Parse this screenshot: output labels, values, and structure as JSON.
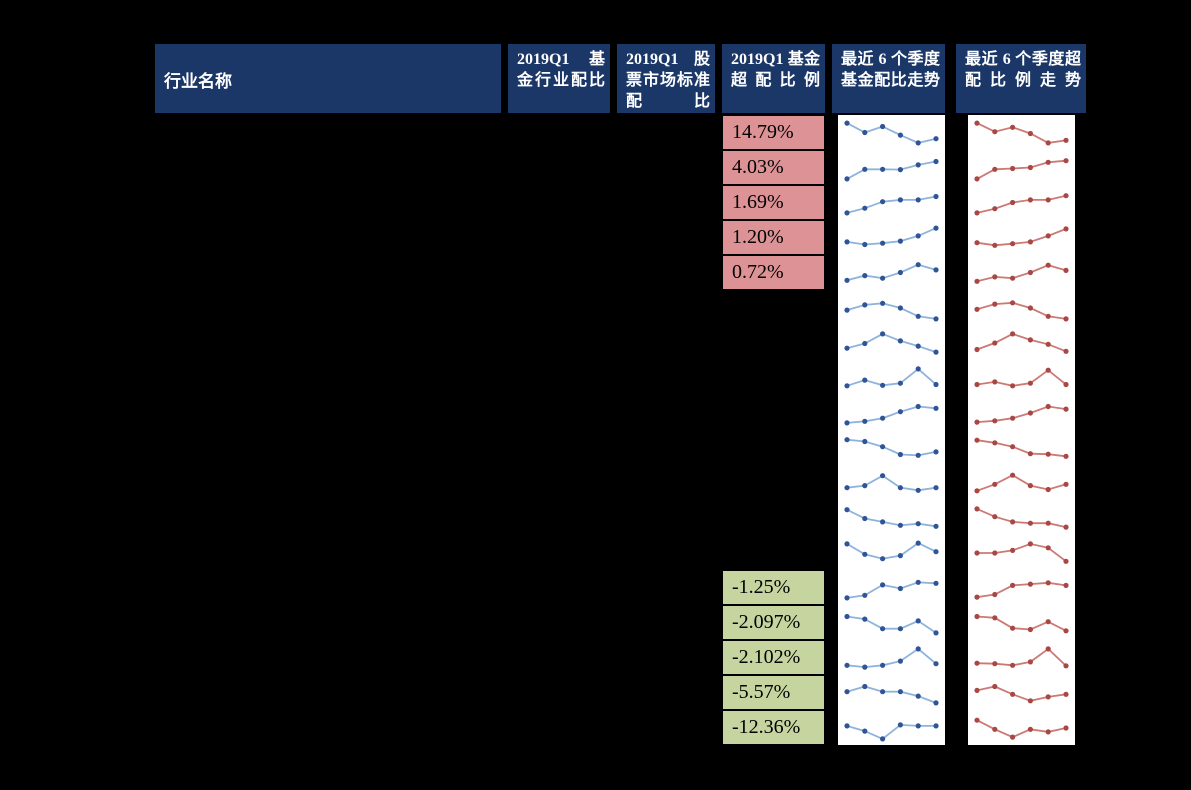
{
  "page": {
    "background": "#000000"
  },
  "palette": {
    "header_bg": "#1b3768",
    "header_text": "#ffffff",
    "positive_cell": "#dd9396",
    "negative_cell": "#c6d5a0",
    "cell_text": "#000000",
    "sparkline_bg": "#ffffff",
    "fund_line": "#8eb4dc",
    "fund_marker": "#2f5597",
    "over_line": "#cc7a76",
    "over_marker": "#a94744"
  },
  "chart_data": {
    "type": "table",
    "title": "",
    "columns": [
      "行业名称",
      "2019Q1 基金行业配比",
      "2019Q1 股票市场标准配比",
      "2019Q1 基金超配比例",
      "最近 6 个季度基金配比走势",
      "最近 6 个季度超配比例走势"
    ],
    "positive_over_ratios": [
      "14.79%",
      "4.03%",
      "1.69%",
      "1.20%",
      "0.72%"
    ],
    "negative_over_ratios": [
      "-1.25%",
      "-2.097%",
      "-2.102%",
      "-5.57%",
      "-12.36%"
    ],
    "rows": [
      {
        "over_ratio": "14.79%",
        "tone": "positive",
        "fund_trend": [
          0.88,
          0.52,
          0.75,
          0.42,
          0.12,
          0.28
        ],
        "over_trend": [
          0.88,
          0.55,
          0.72,
          0.48,
          0.12,
          0.22
        ]
      },
      {
        "over_ratio": "4.03%",
        "tone": "positive",
        "fund_trend": [
          0.08,
          0.45,
          0.45,
          0.44,
          0.62,
          0.75
        ],
        "over_trend": [
          0.08,
          0.45,
          0.48,
          0.52,
          0.72,
          0.78
        ]
      },
      {
        "over_ratio": "1.69%",
        "tone": "positive",
        "fund_trend": [
          0.12,
          0.3,
          0.55,
          0.62,
          0.62,
          0.75
        ],
        "over_trend": [
          0.12,
          0.28,
          0.52,
          0.62,
          0.62,
          0.78
        ]
      },
      {
        "over_ratio": "1.20%",
        "tone": "positive",
        "fund_trend": [
          0.35,
          0.25,
          0.3,
          0.38,
          0.58,
          0.88
        ],
        "over_trend": [
          0.32,
          0.22,
          0.28,
          0.35,
          0.58,
          0.85
        ]
      },
      {
        "over_ratio": "0.72%",
        "tone": "positive",
        "fund_trend": [
          0.22,
          0.4,
          0.3,
          0.52,
          0.82,
          0.62
        ],
        "over_trend": [
          0.18,
          0.35,
          0.3,
          0.52,
          0.8,
          0.6
        ]
      },
      {
        "over_ratio": "",
        "tone": "none",
        "fund_trend": [
          0.42,
          0.62,
          0.68,
          0.5,
          0.18,
          0.08
        ],
        "over_trend": [
          0.45,
          0.65,
          0.7,
          0.5,
          0.18,
          0.08
        ]
      },
      {
        "over_ratio": "",
        "tone": "none",
        "fund_trend": [
          0.3,
          0.48,
          0.85,
          0.58,
          0.38,
          0.15
        ],
        "over_trend": [
          0.25,
          0.5,
          0.85,
          0.62,
          0.45,
          0.18
        ]
      },
      {
        "over_ratio": "",
        "tone": "none",
        "fund_trend": [
          0.2,
          0.42,
          0.22,
          0.3,
          0.85,
          0.25
        ],
        "over_trend": [
          0.25,
          0.35,
          0.2,
          0.3,
          0.8,
          0.25
        ]
      },
      {
        "over_ratio": "",
        "tone": "none",
        "fund_trend": [
          0.12,
          0.18,
          0.3,
          0.55,
          0.75,
          0.68
        ],
        "over_trend": [
          0.15,
          0.2,
          0.3,
          0.5,
          0.75,
          0.65
        ]
      },
      {
        "over_ratio": "",
        "tone": "none",
        "fund_trend": [
          0.82,
          0.75,
          0.55,
          0.25,
          0.22,
          0.35
        ],
        "over_trend": [
          0.8,
          0.7,
          0.55,
          0.28,
          0.26,
          0.18
        ]
      },
      {
        "over_ratio": "",
        "tone": "none",
        "fund_trend": [
          0.32,
          0.4,
          0.78,
          0.32,
          0.22,
          0.32
        ],
        "over_trend": [
          0.2,
          0.45,
          0.8,
          0.4,
          0.25,
          0.45
        ]
      },
      {
        "over_ratio": "",
        "tone": "none",
        "fund_trend": [
          0.82,
          0.48,
          0.35,
          0.22,
          0.28,
          0.18
        ],
        "over_trend": [
          0.85,
          0.55,
          0.35,
          0.3,
          0.3,
          0.15
        ]
      },
      {
        "over_ratio": "",
        "tone": "none",
        "fund_trend": [
          0.85,
          0.45,
          0.28,
          0.4,
          0.88,
          0.55
        ],
        "over_trend": [
          0.5,
          0.5,
          0.6,
          0.85,
          0.7,
          0.18
        ]
      },
      {
        "over_ratio": "-1.25%",
        "tone": "negative",
        "fund_trend": [
          0.12,
          0.22,
          0.62,
          0.48,
          0.72,
          0.68
        ],
        "over_trend": [
          0.15,
          0.25,
          0.6,
          0.65,
          0.7,
          0.6
        ]
      },
      {
        "over_ratio": "-2.097%",
        "tone": "negative",
        "fund_trend": [
          0.75,
          0.65,
          0.28,
          0.28,
          0.58,
          0.12
        ],
        "over_trend": [
          0.75,
          0.7,
          0.3,
          0.25,
          0.55,
          0.2
        ]
      },
      {
        "over_ratio": "-2.102%",
        "tone": "negative",
        "fund_trend": [
          0.22,
          0.15,
          0.22,
          0.38,
          0.85,
          0.28
        ],
        "over_trend": [
          0.3,
          0.28,
          0.22,
          0.35,
          0.85,
          0.2
        ]
      },
      {
        "over_ratio": "-5.57%",
        "tone": "negative",
        "fund_trend": [
          0.55,
          0.75,
          0.55,
          0.55,
          0.38,
          0.12
        ],
        "over_trend": [
          0.6,
          0.75,
          0.45,
          0.2,
          0.35,
          0.45
        ]
      },
      {
        "over_ratio": "-12.36%",
        "tone": "negative",
        "fund_trend": [
          0.58,
          0.38,
          0.08,
          0.62,
          0.58,
          0.58
        ],
        "over_trend": [
          0.8,
          0.45,
          0.15,
          0.45,
          0.35,
          0.5
        ]
      }
    ]
  }
}
